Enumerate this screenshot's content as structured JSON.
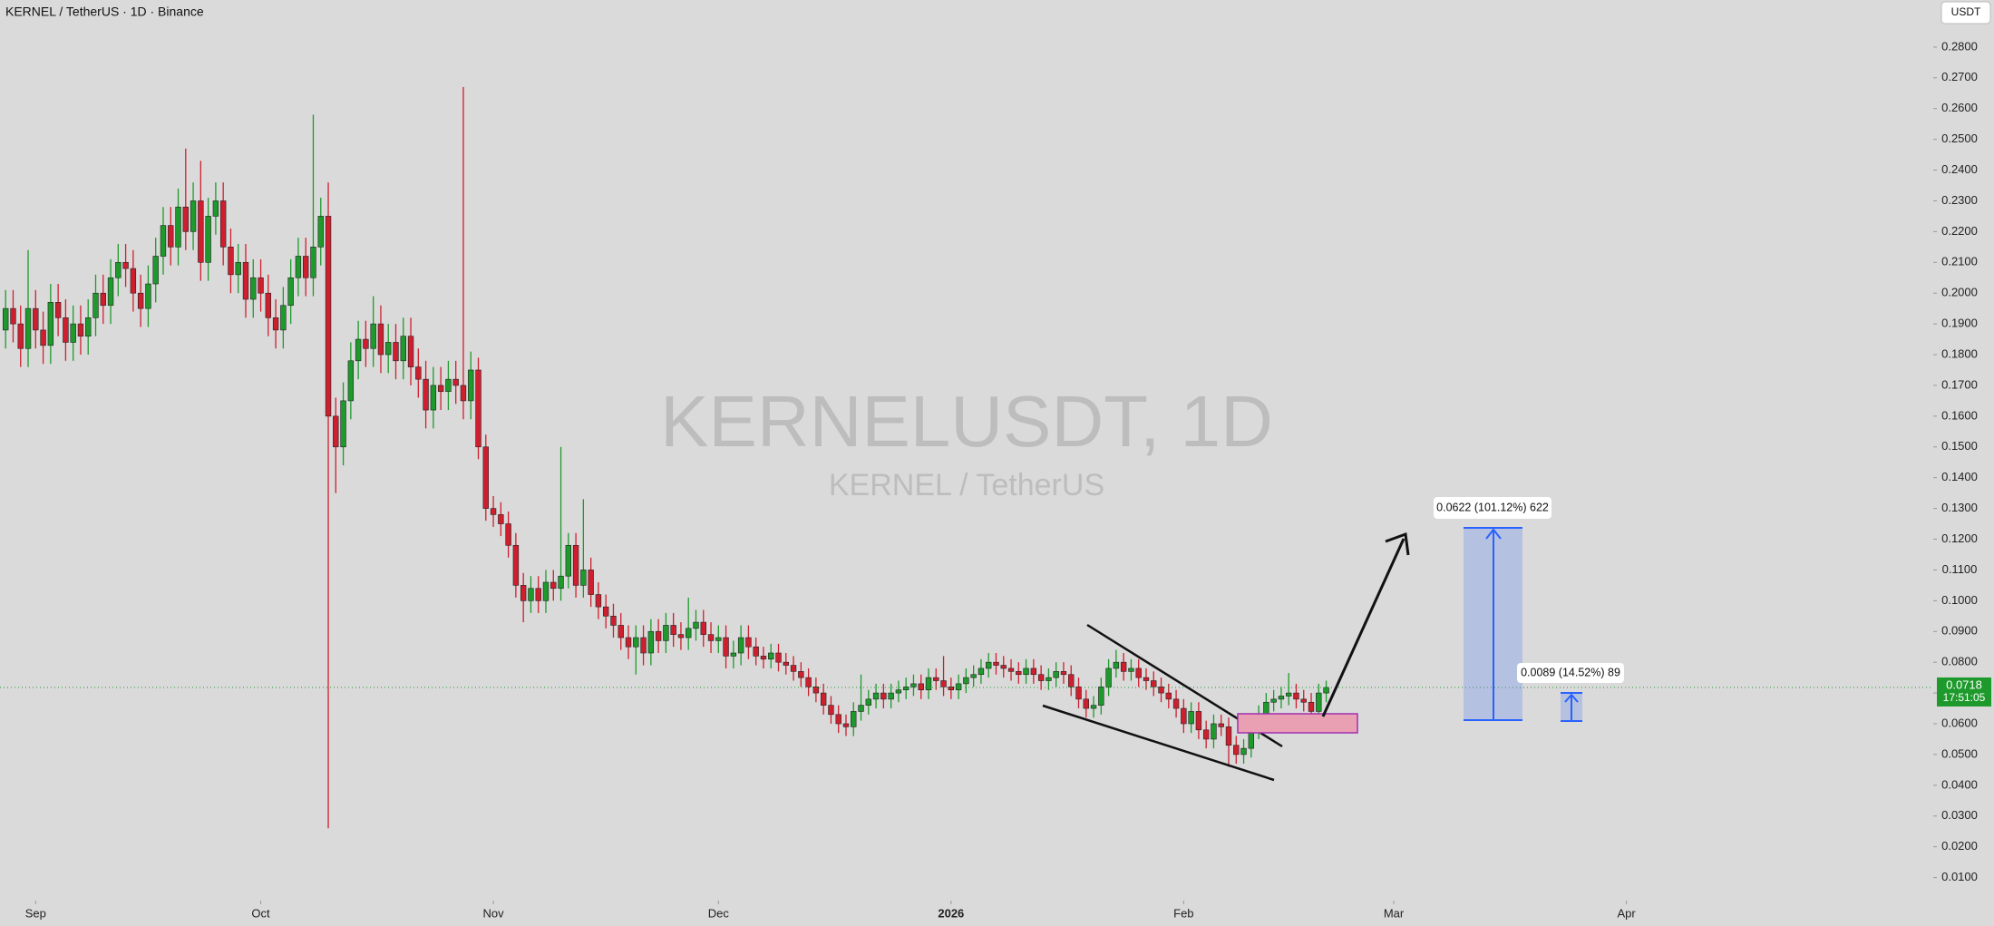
{
  "chart_data": {
    "type": "candlestick",
    "title": "KERNEL / TetherUS · 1D · Binance",
    "watermark": "KERNELUSDT, 1D",
    "watermark_subtitle": "KERNEL / TetherUS",
    "currency": "USDT",
    "last_price": 0.0718,
    "countdown": "17:51:05",
    "up_color": "#1e9a2c",
    "down_color": "#cf1f2f",
    "grid": false,
    "open": [
      0.188,
      0.195,
      0.19,
      0.182,
      0.195,
      0.188,
      0.183,
      0.197,
      0.192,
      0.184,
      0.19,
      0.186,
      0.192,
      0.2,
      0.196,
      0.205,
      0.21,
      0.208,
      0.2,
      0.195,
      0.203,
      0.212,
      0.222,
      0.215,
      0.228,
      0.22,
      0.23,
      0.21,
      0.225,
      0.23,
      0.215,
      0.206,
      0.21,
      0.198,
      0.205,
      0.2,
      0.192,
      0.188,
      0.196,
      0.205,
      0.212,
      0.205,
      0.215,
      0.225,
      0.16,
      0.15,
      0.165,
      0.178,
      0.185,
      0.182,
      0.19,
      0.18,
      0.184,
      0.178,
      0.186,
      0.176,
      0.172,
      0.162,
      0.17,
      0.168,
      0.172,
      0.17,
      0.165,
      0.175,
      0.15,
      0.13,
      0.128,
      0.125,
      0.118,
      0.105,
      0.1,
      0.104,
      0.1,
      0.106,
      0.104,
      0.108,
      0.118,
      0.105,
      0.11,
      0.102,
      0.098,
      0.095,
      0.092,
      0.088,
      0.085,
      0.088,
      0.083,
      0.09,
      0.087,
      0.092,
      0.089,
      0.088,
      0.091,
      0.093,
      0.089,
      0.087,
      0.088,
      0.082,
      0.083,
      0.088,
      0.085,
      0.082,
      0.081,
      0.083,
      0.08,
      0.079,
      0.077,
      0.075,
      0.072,
      0.07,
      0.066,
      0.063,
      0.06,
      0.059,
      0.064,
      0.066,
      0.068,
      0.07,
      0.068,
      0.07,
      0.071,
      0.072,
      0.073,
      0.071,
      0.075,
      0.074,
      0.072,
      0.071,
      0.073,
      0.075,
      0.076,
      0.078,
      0.08,
      0.079,
      0.078,
      0.077,
      0.076,
      0.078,
      0.076,
      0.074,
      0.075,
      0.077,
      0.076,
      0.072,
      0.068,
      0.065,
      0.066,
      0.072,
      0.078,
      0.08,
      0.077,
      0.078,
      0.075,
      0.074,
      0.072,
      0.07,
      0.068,
      0.065,
      0.06,
      0.064,
      0.058,
      0.055,
      0.06,
      0.059,
      0.053,
      0.05,
      0.052,
      0.058,
      0.063,
      0.067,
      0.068,
      0.069,
      0.07,
      0.068,
      0.067,
      0.064,
      0.07
    ],
    "high": [
      0.201,
      0.201,
      0.196,
      0.214,
      0.201,
      0.194,
      0.203,
      0.203,
      0.198,
      0.196,
      0.196,
      0.198,
      0.206,
      0.206,
      0.211,
      0.216,
      0.216,
      0.214,
      0.206,
      0.209,
      0.218,
      0.228,
      0.228,
      0.234,
      0.247,
      0.236,
      0.243,
      0.231,
      0.236,
      0.236,
      0.221,
      0.216,
      0.216,
      0.211,
      0.211,
      0.206,
      0.198,
      0.202,
      0.211,
      0.218,
      0.218,
      0.258,
      0.231,
      0.236,
      0.166,
      0.171,
      0.184,
      0.191,
      0.191,
      0.199,
      0.196,
      0.19,
      0.19,
      0.192,
      0.192,
      0.182,
      0.178,
      0.176,
      0.176,
      0.178,
      0.178,
      0.267,
      0.181,
      0.179,
      0.154,
      0.134,
      0.132,
      0.129,
      0.122,
      0.109,
      0.108,
      0.108,
      0.11,
      0.11,
      0.15,
      0.122,
      0.122,
      0.133,
      0.114,
      0.106,
      0.102,
      0.099,
      0.096,
      0.092,
      0.092,
      0.092,
      0.094,
      0.094,
      0.096,
      0.096,
      0.093,
      0.101,
      0.097,
      0.097,
      0.093,
      0.092,
      0.092,
      0.087,
      0.092,
      0.092,
      0.088,
      0.085,
      0.086,
      0.086,
      0.083,
      0.082,
      0.08,
      0.078,
      0.075,
      0.073,
      0.069,
      0.066,
      0.063,
      0.067,
      0.076,
      0.071,
      0.073,
      0.073,
      0.073,
      0.074,
      0.075,
      0.076,
      0.076,
      0.078,
      0.078,
      0.082,
      0.075,
      0.076,
      0.078,
      0.079,
      0.081,
      0.083,
      0.083,
      0.082,
      0.081,
      0.08,
      0.081,
      0.081,
      0.079,
      0.078,
      0.08,
      0.08,
      0.079,
      0.075,
      0.071,
      0.069,
      0.075,
      0.081,
      0.084,
      0.083,
      0.081,
      0.081,
      0.078,
      0.077,
      0.075,
      0.073,
      0.071,
      0.068,
      0.067,
      0.067,
      0.061,
      0.063,
      0.063,
      0.062,
      0.056,
      0.055,
      0.061,
      0.066,
      0.07,
      0.071,
      0.072,
      0.0765,
      0.073,
      0.071,
      0.07,
      0.073,
      0.074
    ],
    "low": [
      0.182,
      0.184,
      0.176,
      0.176,
      0.182,
      0.177,
      0.177,
      0.186,
      0.178,
      0.178,
      0.18,
      0.18,
      0.186,
      0.19,
      0.19,
      0.199,
      0.202,
      0.194,
      0.189,
      0.189,
      0.197,
      0.206,
      0.209,
      0.209,
      0.214,
      0.214,
      0.204,
      0.204,
      0.219,
      0.209,
      0.2,
      0.2,
      0.192,
      0.192,
      0.194,
      0.186,
      0.182,
      0.182,
      0.19,
      0.199,
      0.199,
      0.199,
      0.209,
      0.026,
      0.135,
      0.144,
      0.159,
      0.172,
      0.176,
      0.176,
      0.174,
      0.174,
      0.172,
      0.172,
      0.17,
      0.166,
      0.156,
      0.156,
      0.162,
      0.162,
      0.164,
      0.159,
      0.159,
      0.146,
      0.126,
      0.124,
      0.121,
      0.114,
      0.101,
      0.093,
      0.096,
      0.096,
      0.096,
      0.1,
      0.1,
      0.104,
      0.101,
      0.101,
      0.098,
      0.094,
      0.091,
      0.088,
      0.084,
      0.081,
      0.076,
      0.079,
      0.079,
      0.083,
      0.083,
      0.085,
      0.084,
      0.084,
      0.087,
      0.085,
      0.083,
      0.083,
      0.078,
      0.078,
      0.079,
      0.081,
      0.079,
      0.078,
      0.078,
      0.077,
      0.076,
      0.074,
      0.072,
      0.069,
      0.067,
      0.063,
      0.06,
      0.057,
      0.056,
      0.056,
      0.061,
      0.063,
      0.065,
      0.065,
      0.065,
      0.067,
      0.068,
      0.069,
      0.068,
      0.068,
      0.071,
      0.069,
      0.068,
      0.068,
      0.07,
      0.072,
      0.073,
      0.075,
      0.076,
      0.075,
      0.074,
      0.073,
      0.073,
      0.073,
      0.071,
      0.071,
      0.072,
      0.073,
      0.069,
      0.065,
      0.062,
      0.062,
      0.063,
      0.069,
      0.075,
      0.074,
      0.074,
      0.072,
      0.071,
      0.069,
      0.067,
      0.065,
      0.062,
      0.057,
      0.057,
      0.055,
      0.052,
      0.052,
      0.056,
      0.046,
      0.047,
      0.047,
      0.049,
      0.055,
      0.06,
      0.064,
      0.065,
      0.066,
      0.065,
      0.064,
      0.061,
      0.061,
      0.067
    ],
    "close": [
      0.195,
      0.19,
      0.182,
      0.195,
      0.188,
      0.183,
      0.197,
      0.192,
      0.184,
      0.19,
      0.186,
      0.192,
      0.2,
      0.196,
      0.205,
      0.21,
      0.208,
      0.2,
      0.195,
      0.203,
      0.212,
      0.222,
      0.215,
      0.228,
      0.22,
      0.23,
      0.21,
      0.225,
      0.23,
      0.215,
      0.206,
      0.21,
      0.198,
      0.205,
      0.2,
      0.192,
      0.188,
      0.196,
      0.205,
      0.212,
      0.205,
      0.215,
      0.225,
      0.16,
      0.15,
      0.165,
      0.178,
      0.185,
      0.182,
      0.19,
      0.18,
      0.184,
      0.178,
      0.186,
      0.176,
      0.172,
      0.162,
      0.17,
      0.168,
      0.172,
      0.17,
      0.165,
      0.175,
      0.15,
      0.13,
      0.128,
      0.125,
      0.118,
      0.105,
      0.1,
      0.104,
      0.1,
      0.106,
      0.104,
      0.108,
      0.118,
      0.105,
      0.11,
      0.102,
      0.098,
      0.095,
      0.092,
      0.088,
      0.085,
      0.088,
      0.083,
      0.09,
      0.087,
      0.092,
      0.089,
      0.088,
      0.091,
      0.093,
      0.089,
      0.087,
      0.088,
      0.082,
      0.083,
      0.088,
      0.085,
      0.082,
      0.081,
      0.083,
      0.08,
      0.079,
      0.077,
      0.075,
      0.072,
      0.07,
      0.066,
      0.063,
      0.06,
      0.059,
      0.064,
      0.066,
      0.068,
      0.07,
      0.068,
      0.07,
      0.071,
      0.072,
      0.073,
      0.071,
      0.075,
      0.074,
      0.072,
      0.071,
      0.073,
      0.075,
      0.076,
      0.078,
      0.08,
      0.079,
      0.078,
      0.077,
      0.076,
      0.078,
      0.076,
      0.074,
      0.075,
      0.077,
      0.076,
      0.072,
      0.068,
      0.065,
      0.066,
      0.072,
      0.078,
      0.08,
      0.077,
      0.078,
      0.075,
      0.074,
      0.072,
      0.07,
      0.068,
      0.065,
      0.06,
      0.064,
      0.058,
      0.055,
      0.06,
      0.059,
      0.053,
      0.05,
      0.052,
      0.058,
      0.063,
      0.067,
      0.068,
      0.069,
      0.07,
      0.068,
      0.067,
      0.064,
      0.07,
      0.0718
    ],
    "xlim": [
      -0.75,
      256.9
    ],
    "xticks": [
      {
        "value": 4,
        "label": "Sep"
      },
      {
        "value": 34,
        "label": "Oct"
      },
      {
        "value": 65,
        "label": "Nov"
      },
      {
        "value": 95,
        "label": "Dec"
      },
      {
        "value": 126,
        "label": "2026"
      },
      {
        "value": 157,
        "label": "Feb"
      },
      {
        "value": 185,
        "label": "Mar"
      },
      {
        "value": 216,
        "label": "Apr"
      }
    ],
    "ylim": [
      0.0025,
      0.2953
    ],
    "yticks": [
      {
        "value": 0.28,
        "label": "0.2800"
      },
      {
        "value": 0.27,
        "label": "0.2700"
      },
      {
        "value": 0.26,
        "label": "0.2600"
      },
      {
        "value": 0.25,
        "label": "0.2500"
      },
      {
        "value": 0.24,
        "label": "0.2400"
      },
      {
        "value": 0.23,
        "label": "0.2300"
      },
      {
        "value": 0.22,
        "label": "0.2200"
      },
      {
        "value": 0.21,
        "label": "0.2100"
      },
      {
        "value": 0.2,
        "label": "0.2000"
      },
      {
        "value": 0.19,
        "label": "0.1900"
      },
      {
        "value": 0.18,
        "label": "0.1800"
      },
      {
        "value": 0.17,
        "label": "0.1700"
      },
      {
        "value": 0.16,
        "label": "0.1600"
      },
      {
        "value": 0.15,
        "label": "0.1500"
      },
      {
        "value": 0.14,
        "label": "0.1400"
      },
      {
        "value": 0.13,
        "label": "0.1300"
      },
      {
        "value": 0.12,
        "label": "0.1200"
      },
      {
        "value": 0.11,
        "label": "0.1100"
      },
      {
        "value": 0.1,
        "label": "0.1000"
      },
      {
        "value": 0.09,
        "label": "0.0900"
      },
      {
        "value": 0.08,
        "label": "0.0800"
      },
      {
        "value": 0.07,
        "label": "0.0700"
      },
      {
        "value": 0.06,
        "label": "0.0600"
      },
      {
        "value": 0.05,
        "label": "0.0500"
      },
      {
        "value": 0.04,
        "label": "0.0400"
      },
      {
        "value": 0.03,
        "label": "0.0300"
      },
      {
        "value": 0.02,
        "label": "0.0200"
      },
      {
        "value": 0.01,
        "label": "0.0100"
      }
    ],
    "measurements": [
      "0.0622 (101.12%) 622",
      "0.0089 (14.52%) 89"
    ]
  }
}
